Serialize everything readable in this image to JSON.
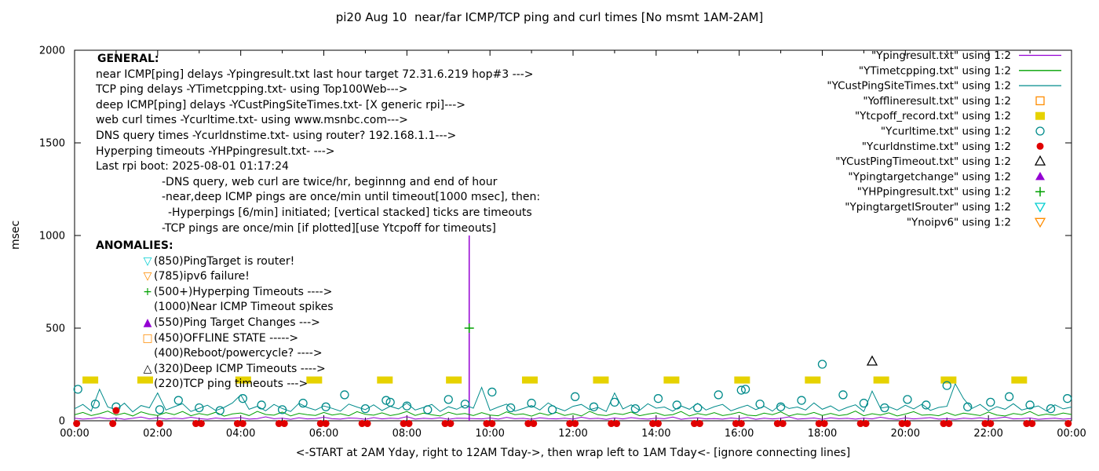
{
  "title": "pi20 Aug 10  near/far ICMP/TCP ping and curl times [No msmt 1AM-2AM]",
  "ylabel": "msec",
  "xlabel": "<-START at 2AM Yday, right to 12AM Tday->, then wrap left to 1AM Tday<- [ignore connecting lines]",
  "general": {
    "heading": "GENERAL:",
    "lines": [
      {
        "indent": 0,
        "text": "near ICMP[ping] delays -Ypingresult.txt last hour target 72.31.6.219 hop#3 --->"
      },
      {
        "indent": 0,
        "text": "TCP ping delays -YTimetcpping.txt- using Top100Web--->"
      },
      {
        "indent": 0,
        "text": "deep ICMP[ping] delays -YCustPingSiteTimes.txt- [X generic rpi]--->"
      },
      {
        "indent": 0,
        "text": "web curl times -Ycurltime.txt- using www.msnbc.com--->"
      },
      {
        "indent": 0,
        "text": "DNS query times -Ycurldnstime.txt- using router? 192.168.1.1--->"
      },
      {
        "indent": 0,
        "text": "Hyperping timeouts -YHPpingresult.txt- --->"
      },
      {
        "indent": 0,
        "text": "Last rpi boot: 2025-08-01 01:17:24"
      },
      {
        "indent": 1,
        "text": "-DNS query, web curl are twice/hr, beginnng and end of hour"
      },
      {
        "indent": 1,
        "text": "-near,deep ICMP pings are once/min until timeout[1000 msec], then:"
      },
      {
        "indent": 2,
        "text": "-Hyperpings [6/min] initiated; [vertical stacked] ticks are timeouts"
      },
      {
        "indent": 1,
        "text": "-TCP pings are once/min [if plotted][use Ytcpoff for timeouts]"
      }
    ]
  },
  "anomalies": {
    "heading": "ANOMALIES:",
    "items": [
      {
        "icon": "▽",
        "icon_name": "triangle-down-open-icon",
        "color": "#00CED1",
        "text": "(850)PingTarget is router!"
      },
      {
        "icon": "▽",
        "icon_name": "triangle-down-open-icon",
        "color": "#FF8C00",
        "text": "(785)ipv6 failure!"
      },
      {
        "icon": "+",
        "icon_name": "plus-icon",
        "color": "#00A000",
        "text": "(500+)Hyperping Timeouts ---->"
      },
      {
        "icon": "",
        "icon_name": "no-icon",
        "color": "",
        "text": "(1000)Near ICMP Timeout spikes"
      },
      {
        "icon": "▲",
        "icon_name": "triangle-up-filled-icon",
        "color": "#9400D3",
        "text": "(550)Ping Target Changes --->"
      },
      {
        "icon": "□",
        "icon_name": "square-open-icon",
        "color": "#FF8C00",
        "text": "(450)OFFLINE STATE ----->"
      },
      {
        "icon": "",
        "icon_name": "no-icon",
        "color": "",
        "text": "(400)Reboot/powercycle? ---->"
      },
      {
        "icon": "△",
        "icon_name": "triangle-up-open-icon",
        "color": "#000000",
        "text": "(320)Deep ICMP Timeouts ---->"
      },
      {
        "icon": "",
        "icon_name": "no-icon",
        "color": "",
        "text": "(220)TCP ping timeouts --->"
      }
    ]
  },
  "legend": [
    {
      "label": "\"Ypingresult.txt\" using 1:2",
      "marker": "line",
      "color": "#9400D3"
    },
    {
      "label": "\"YTimetcpping.txt\" using 1:2",
      "marker": "line",
      "color": "#00A000"
    },
    {
      "label": "\"YCustPingSiteTimes.txt\" using 1:2",
      "marker": "line",
      "color": "#008B8B"
    },
    {
      "label": "\"Yofflineresult.txt\" using 1:2",
      "marker": "square-open",
      "color": "#FF8C00"
    },
    {
      "label": "\"Ytcpoff_record.txt\" using 1:2",
      "marker": "square-filled",
      "color": "#E6D200"
    },
    {
      "label": "\"Ycurltime.txt\" using 1:2",
      "marker": "circle-open",
      "color": "#008B8B"
    },
    {
      "label": "\"Ycurldnstime.txt\" using 1:2",
      "marker": "circle-filled",
      "color": "#E00000"
    },
    {
      "label": "\"YCustPingTimeout.txt\" using 1:2",
      "marker": "triangle-open",
      "color": "#000000"
    },
    {
      "label": "\"Ypingtargetchange\" using 1:2",
      "marker": "triangle-filled",
      "color": "#9400D3"
    },
    {
      "label": "\"YHPpingresult.txt\" using 1:2",
      "marker": "plus",
      "color": "#00A000"
    },
    {
      "label": "\"YpingtargetISrouter\" using 1:2",
      "marker": "triangle-down-open",
      "color": "#00CED1"
    },
    {
      "label": "\"Ynoipv6\" using 1:2",
      "marker": "triangle-down-open",
      "color": "#FF8C00"
    }
  ],
  "chart_data": {
    "type": "line",
    "xlim": [
      0,
      24
    ],
    "ylim": [
      0,
      2000
    ],
    "x_step_hours": 0.2,
    "x_tick_labels": [
      "00:00",
      "02:00",
      "04:00",
      "06:00",
      "08:00",
      "10:00",
      "12:00",
      "14:00",
      "16:00",
      "18:00",
      "20:00",
      "22:00",
      "00:00"
    ],
    "y_ticks": [
      0,
      500,
      1000,
      1500,
      2000
    ],
    "series": [
      {
        "id": "near-icmp",
        "name": "Ypingresult near ICMP delay",
        "color": "#9400D3",
        "spikes": [
          [
            9.5,
            1000
          ]
        ],
        "values": [
          14,
          9,
          12,
          18,
          11,
          15,
          8,
          13,
          20,
          10,
          16,
          9,
          14,
          11,
          19,
          12,
          8,
          15,
          10,
          13,
          17,
          9,
          12,
          21,
          11,
          14,
          8,
          16,
          10,
          12,
          19,
          11,
          9,
          15,
          13,
          8,
          17,
          10,
          14,
          12,
          22,
          9,
          13,
          11,
          16,
          8,
          14,
          13,
          12,
          10,
          15,
          9,
          18,
          11,
          13,
          8,
          16,
          12,
          10,
          14,
          9,
          19,
          11,
          13,
          8,
          15,
          10,
          17,
          12,
          9,
          14,
          11,
          20,
          8,
          13,
          16,
          10,
          12,
          9,
          15,
          11,
          18,
          8,
          14,
          10,
          13,
          21,
          9,
          12,
          15,
          8,
          16,
          11,
          13,
          9,
          14,
          10,
          19,
          12,
          8,
          15,
          10,
          13,
          17,
          9,
          12,
          8,
          14,
          11,
          16,
          9,
          13,
          20,
          10,
          12,
          15,
          8,
          11,
          14,
          9,
          12
        ]
      },
      {
        "id": "tcp-ping",
        "name": "YTimetcpping TCP ping delay",
        "color": "#00A000",
        "values": [
          32,
          45,
          28,
          38,
          52,
          30,
          41,
          26,
          48,
          35,
          29,
          44,
          33,
          50,
          27,
          39,
          31,
          46,
          25,
          37,
          42,
          28,
          51,
          34,
          30,
          47,
          26,
          40,
          33,
          29,
          45,
          31,
          38,
          27,
          49,
          35,
          30,
          43,
          28,
          36,
          50,
          29,
          41,
          32,
          26,
          46,
          34,
          39,
          28,
          44,
          31,
          27,
          48,
          33,
          37,
          25,
          42,
          30,
          45,
          29,
          38,
          26,
          51,
          32,
          28,
          40,
          34,
          47,
          27,
          36,
          43,
          29,
          33,
          50,
          26,
          39,
          31,
          44,
          28,
          35,
          46,
          30,
          27,
          41,
          33,
          48,
          26,
          37,
          32,
          45,
          29,
          40,
          28,
          34,
          52,
          27,
          38,
          31,
          43,
          26,
          36,
          49,
          30,
          33,
          27,
          44,
          29,
          41,
          35,
          28,
          47,
          31,
          26,
          39,
          33,
          50,
          28,
          36,
          30,
          42,
          34
        ]
      },
      {
        "id": "deep-icmp",
        "name": "YCustPingSiteTimes deep ICMP delay",
        "color": "#008B8B",
        "values": [
          65,
          88,
          52,
          170,
          74,
          60,
          95,
          48,
          82,
          70,
          150,
          58,
          76,
          92,
          50,
          68,
          84,
          55,
          72,
          96,
          140,
          62,
          78,
          54,
          88,
          66,
          50,
          94,
          72,
          58,
          80,
          67,
          52,
          90,
          74,
          60,
          86,
          55,
          78,
          64,
          95,
          58,
          72,
          88,
          50,
          76,
          62,
          84,
          68,
          180,
          56,
          74,
          90,
          52,
          66,
          82,
          58,
          96,
          70,
          54,
          78,
          88,
          60,
          72,
          50,
          150,
          64,
          86,
          56,
          92,
          68,
          74,
          52,
          80,
          62,
          94,
          58,
          76,
          88,
          54,
          70,
          84,
          60,
          78,
          52,
          90,
          66,
          74,
          58,
          96,
          62,
          80,
          54,
          72,
          86,
          50,
          160,
          68,
          76,
          58,
          84,
          64,
          90,
          56,
          72,
          78,
          200,
          120,
          66,
          88,
          54,
          76,
          62,
          92,
          58,
          70,
          80,
          52,
          86,
          64,
          74
        ]
      }
    ],
    "markers": [
      {
        "id": "tcp-timeout-squares",
        "name": "Ytcpoff_record TCP ping timeouts",
        "shape": "rect-filled",
        "color": "#E6D200",
        "points": [
          [
            0.38,
            220
          ],
          [
            1.7,
            220
          ],
          [
            4.06,
            220
          ],
          [
            5.77,
            220
          ],
          [
            7.47,
            220
          ],
          [
            9.13,
            220
          ],
          [
            10.96,
            220
          ],
          [
            12.67,
            220
          ],
          [
            14.37,
            220
          ],
          [
            16.07,
            220
          ],
          [
            17.77,
            220
          ],
          [
            19.42,
            220
          ],
          [
            21.04,
            220
          ],
          [
            22.74,
            220
          ]
        ]
      },
      {
        "id": "curl-circles",
        "name": "Ycurltime web curl times",
        "shape": "circle-open",
        "color": "#008B8B",
        "r": 5,
        "points": [
          [
            0.08,
            170
          ],
          [
            0.5,
            90
          ],
          [
            1.0,
            75
          ],
          [
            2.05,
            60
          ],
          [
            2.5,
            110
          ],
          [
            3.0,
            70
          ],
          [
            3.5,
            55
          ],
          [
            4.05,
            120
          ],
          [
            4.5,
            85
          ],
          [
            5.0,
            60
          ],
          [
            5.5,
            95
          ],
          [
            6.05,
            75
          ],
          [
            6.5,
            140
          ],
          [
            7.0,
            65
          ],
          [
            7.5,
            110
          ],
          [
            7.6,
            100
          ],
          [
            8.0,
            80
          ],
          [
            8.5,
            60
          ],
          [
            9.0,
            115
          ],
          [
            9.4,
            90
          ],
          [
            10.05,
            155
          ],
          [
            10.5,
            70
          ],
          [
            11.0,
            95
          ],
          [
            11.5,
            60
          ],
          [
            12.05,
            130
          ],
          [
            12.5,
            75
          ],
          [
            13.0,
            100
          ],
          [
            13.5,
            65
          ],
          [
            14.05,
            120
          ],
          [
            14.5,
            85
          ],
          [
            15.0,
            70
          ],
          [
            15.5,
            140
          ],
          [
            16.05,
            165
          ],
          [
            16.15,
            170
          ],
          [
            16.5,
            90
          ],
          [
            17.0,
            75
          ],
          [
            17.5,
            110
          ],
          [
            18.0,
            305
          ],
          [
            18.5,
            140
          ],
          [
            19.0,
            95
          ],
          [
            19.5,
            70
          ],
          [
            20.05,
            115
          ],
          [
            20.5,
            85
          ],
          [
            21.0,
            190
          ],
          [
            21.5,
            75
          ],
          [
            22.05,
            100
          ],
          [
            22.5,
            130
          ],
          [
            23.0,
            85
          ],
          [
            23.5,
            65
          ],
          [
            23.9,
            120
          ]
        ]
      },
      {
        "id": "dns-dots",
        "name": "Ycurldnstime DNS query times",
        "shape": "circle-filled",
        "color": "#E00000",
        "r": 4.5,
        "points": [
          [
            0.05,
            -15
          ],
          [
            0.92,
            -15
          ],
          [
            1.0,
            55
          ],
          [
            2.05,
            -15
          ],
          [
            2.92,
            -15
          ],
          [
            3.05,
            -15
          ],
          [
            3.92,
            -15
          ],
          [
            4.05,
            -15
          ],
          [
            4.92,
            -15
          ],
          [
            5.05,
            -15
          ],
          [
            5.92,
            -15
          ],
          [
            6.05,
            -15
          ],
          [
            6.92,
            -15
          ],
          [
            7.05,
            -15
          ],
          [
            7.92,
            -15
          ],
          [
            8.05,
            -15
          ],
          [
            8.92,
            -15
          ],
          [
            9.05,
            -15
          ],
          [
            9.92,
            -15
          ],
          [
            10.05,
            -15
          ],
          [
            10.92,
            -15
          ],
          [
            11.05,
            -15
          ],
          [
            11.92,
            -15
          ],
          [
            12.05,
            -15
          ],
          [
            12.92,
            -15
          ],
          [
            13.05,
            -15
          ],
          [
            13.92,
            -15
          ],
          [
            14.05,
            -15
          ],
          [
            14.92,
            -15
          ],
          [
            15.05,
            -15
          ],
          [
            15.92,
            -15
          ],
          [
            16.05,
            -15
          ],
          [
            16.92,
            -15
          ],
          [
            17.05,
            -15
          ],
          [
            17.92,
            -15
          ],
          [
            18.05,
            -15
          ],
          [
            18.92,
            -15
          ],
          [
            19.05,
            -15
          ],
          [
            19.92,
            -15
          ],
          [
            20.05,
            -15
          ],
          [
            20.92,
            -15
          ],
          [
            21.05,
            -15
          ],
          [
            21.92,
            -15
          ],
          [
            22.05,
            -15
          ],
          [
            22.92,
            -15
          ],
          [
            23.05,
            -15
          ],
          [
            23.92,
            -15
          ]
        ]
      },
      {
        "id": "deep-timeout-triangles",
        "name": "YCustPingTimeout deep ICMP timeouts",
        "shape": "triangle-open",
        "color": "#000000",
        "points": [
          [
            19.2,
            320
          ]
        ]
      },
      {
        "id": "hyperping-plus",
        "name": "YHPpingresult hyperping timeouts",
        "shape": "plus",
        "color": "#00A000",
        "points": [
          [
            9.5,
            500
          ]
        ]
      }
    ]
  }
}
